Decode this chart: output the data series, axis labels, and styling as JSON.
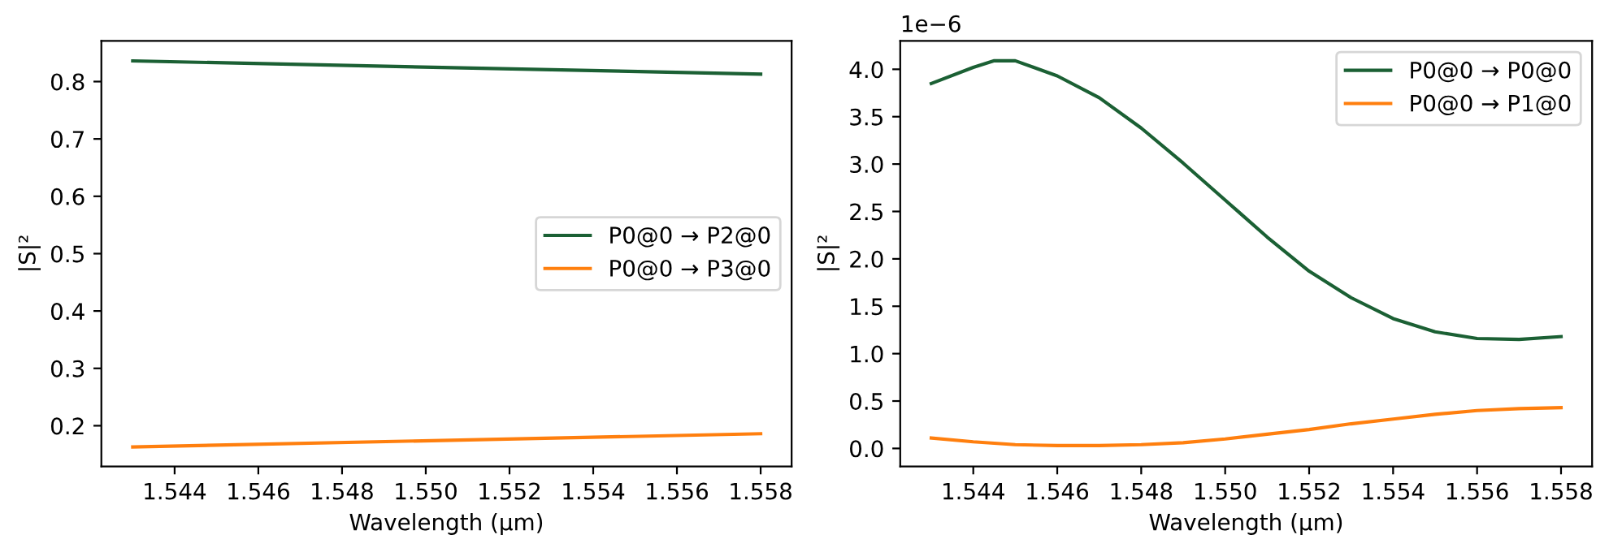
{
  "chart_data": [
    {
      "type": "line",
      "xlabel": "Wavelength (µm)",
      "ylabel": "|S|²",
      "legend": "center right",
      "x": [
        1.543,
        1.558
      ],
      "series": [
        {
          "name": "P0@0 → P2@0",
          "color": "#1b6034",
          "values": [
            0.836,
            0.813
          ]
        },
        {
          "name": "P0@0 → P3@0",
          "color": "#ff7f0e",
          "values": [
            0.163,
            0.186
          ]
        }
      ],
      "xlim": [
        1.54225,
        1.55874
      ],
      "xticks": [
        1.544,
        1.546,
        1.548,
        {
          "value": 1.55,
          "label": "1.550"
        },
        1.552,
        1.554,
        1.556,
        1.558
      ],
      "ylim": [
        0.129,
        0.871
      ],
      "yticks": [
        0.2,
        0.3,
        0.4,
        0.5,
        0.6,
        0.7,
        0.8
      ]
    },
    {
      "type": "line",
      "xlabel": "Wavelength (µm)",
      "ylabel": "|S|²",
      "legend": "top right",
      "annotations": [
        "1e−6"
      ],
      "x": [
        1.543,
        1.544,
        1.5445,
        1.545,
        1.546,
        1.547,
        1.548,
        1.549,
        1.55,
        1.551,
        1.552,
        1.553,
        1.554,
        1.555,
        1.556,
        1.557,
        1.558
      ],
      "series": [
        {
          "name": "P0@0 → P0@0",
          "color": "#1b6034",
          "values": [
            3.85,
            4.02,
            4.09,
            4.09,
            3.93,
            3.7,
            3.38,
            3.01,
            2.62,
            2.23,
            1.87,
            1.59,
            1.37,
            1.23,
            1.16,
            1.15,
            1.18
          ]
        },
        {
          "name": "P0@0 → P1@0",
          "color": "#ff7f0e",
          "x": [
            1.543,
            1.544,
            1.545,
            1.546,
            1.547,
            1.548,
            1.549,
            1.55,
            1.551,
            1.552,
            1.553,
            1.554,
            1.555,
            1.556,
            1.557,
            1.558
          ],
          "values": [
            0.11,
            0.07,
            0.04,
            0.03,
            0.03,
            0.04,
            0.06,
            0.1,
            0.15,
            0.2,
            0.26,
            0.31,
            0.36,
            0.4,
            0.42,
            0.43
          ]
        }
      ],
      "xlim": [
        1.54226,
        1.55874
      ],
      "xticks": [
        1.544,
        1.546,
        1.548,
        {
          "value": 1.55,
          "label": "1.550"
        },
        1.552,
        1.554,
        1.556,
        1.558
      ],
      "ylim": [
        -0.19,
        4.3
      ],
      "yticks": [
        {
          "value": 0,
          "label": "0.0"
        },
        0.5,
        {
          "value": 1,
          "label": "1.0"
        },
        1.5,
        {
          "value": 2,
          "label": "2.0"
        },
        2.5,
        {
          "value": 3,
          "label": "3.0"
        },
        3.5,
        {
          "value": 4,
          "label": "4.0"
        }
      ]
    }
  ]
}
